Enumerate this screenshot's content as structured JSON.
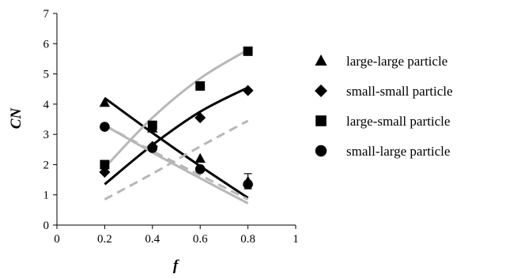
{
  "chart_data": {
    "type": "scatter",
    "xlabel": "f",
    "ylabel": "CN",
    "xlim": [
      0,
      1
    ],
    "ylim": [
      0,
      7
    ],
    "xticks": [
      0,
      0.2,
      0.4,
      0.6,
      0.8,
      1
    ],
    "xtick_labels": [
      "0",
      "0.2",
      "0.4",
      "0.6",
      "0.8",
      "1"
    ],
    "yticks": [
      0,
      1,
      2,
      3,
      4,
      5,
      6,
      7
    ],
    "ytick_labels": [
      "0",
      "1",
      "2",
      "3",
      "4",
      "5",
      "6",
      "7"
    ],
    "grid": false,
    "legend_position": "right",
    "series": [
      {
        "name": "large-large particle",
        "marker": "triangle",
        "x": [
          0.2,
          0.4,
          0.6,
          0.8
        ],
        "y": [
          4.05,
          3.2,
          2.2,
          1.45
        ],
        "error": [
          0,
          0,
          0,
          0.25
        ]
      },
      {
        "name": "small-small particle",
        "marker": "diamond",
        "x": [
          0.2,
          0.4,
          0.6,
          0.8
        ],
        "y": [
          1.75,
          2.6,
          3.55,
          4.45
        ],
        "error": [
          0,
          0,
          0,
          0
        ]
      },
      {
        "name": "large-small particle",
        "marker": "square",
        "x": [
          0.2,
          0.4,
          0.6,
          0.8
        ],
        "y": [
          2.0,
          3.3,
          4.6,
          5.75
        ],
        "error": [
          0,
          0,
          0,
          0
        ]
      },
      {
        "name": "small-large particle",
        "marker": "circle",
        "x": [
          0.2,
          0.4,
          0.6,
          0.8
        ],
        "y": [
          3.25,
          2.55,
          1.85,
          1.35
        ],
        "error": [
          0,
          0,
          0,
          0
        ]
      }
    ],
    "fit_lines": [
      {
        "color": "#000000",
        "dash": "solid",
        "x": [
          0.2,
          0.4,
          0.6,
          0.8
        ],
        "y": [
          4.2,
          3.05,
          1.95,
          0.9
        ]
      },
      {
        "color": "#000000",
        "dash": "solid",
        "x": [
          0.2,
          0.4,
          0.6,
          0.8
        ],
        "y": [
          1.35,
          2.65,
          3.75,
          4.55
        ]
      },
      {
        "color": "#b7b7b7",
        "dash": "solid",
        "x": [
          0.2,
          0.4,
          0.6,
          0.8
        ],
        "y": [
          1.9,
          3.55,
          4.85,
          5.8
        ]
      },
      {
        "color": "#b7b7b7",
        "dash": "solid",
        "x": [
          0.2,
          0.4,
          0.6,
          0.8
        ],
        "y": [
          3.3,
          2.4,
          1.55,
          0.72
        ]
      },
      {
        "color": "#b7b7b7",
        "dash": "dashed",
        "x": [
          0.2,
          0.4,
          0.6,
          0.8
        ],
        "y": [
          0.85,
          1.7,
          2.6,
          3.45
        ]
      },
      {
        "color": "#b7b7b7",
        "dash": "dashed",
        "x": [
          0.2,
          0.4,
          0.6,
          0.8
        ],
        "y": [
          3.3,
          2.45,
          1.65,
          0.85
        ]
      }
    ]
  }
}
